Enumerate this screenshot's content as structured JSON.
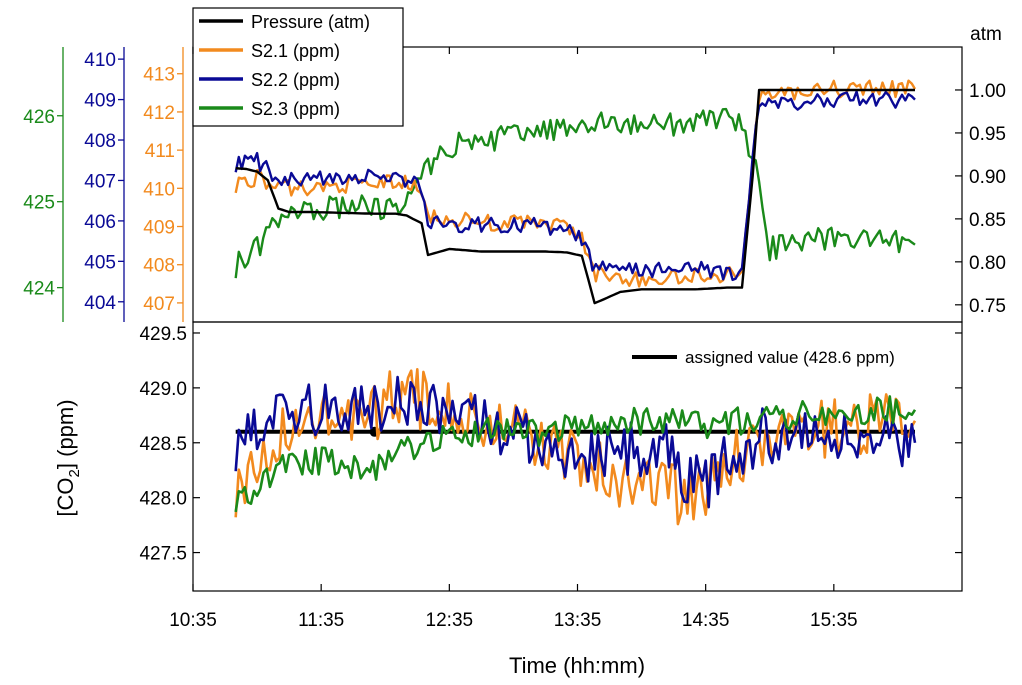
{
  "chart_data": [
    {
      "type": "line",
      "panel": "top",
      "right_axis": {
        "label": "atm",
        "range": [
          0.73,
          1.05
        ],
        "ticks": [
          "0.75",
          "0.80",
          "0.85",
          "0.90",
          "0.95",
          "1.00"
        ]
      },
      "left_axes": [
        {
          "color": "#1a8a1a",
          "range": [
            423.6,
            426.8
          ],
          "ticks": [
            "424",
            "425",
            "426"
          ]
        },
        {
          "color": "#0a0a96",
          "range": [
            403.5,
            410.3
          ],
          "ticks": [
            "404",
            "405",
            "406",
            "407",
            "408",
            "409",
            "410"
          ]
        },
        {
          "color": "#f28a1e",
          "range": [
            406.5,
            413.7
          ],
          "ticks": [
            "407",
            "408",
            "409",
            "410",
            "411",
            "412",
            "413"
          ]
        }
      ],
      "legend": {
        "position": "top-left",
        "entries": [
          "Pressure (atm)",
          "S2.1 (ppm)",
          "S2.2 (ppm)",
          "S2.3 (ppm)"
        ]
      },
      "series": [
        {
          "name": "Pressure (atm)",
          "color": "#000000",
          "axis": "atm",
          "points": [
            [
              "10:55",
              0.909
            ],
            [
              "11:00",
              0.908
            ],
            [
              "11:05",
              0.905
            ],
            [
              "11:10",
              0.895
            ],
            [
              "11:15",
              0.862
            ],
            [
              "11:20",
              0.858
            ],
            [
              "11:30",
              0.858
            ],
            [
              "11:45",
              0.857
            ],
            [
              "12:00",
              0.856
            ],
            [
              "12:10",
              0.856
            ],
            [
              "12:15",
              0.854
            ],
            [
              "12:18",
              0.85
            ],
            [
              "12:22",
              0.845
            ],
            [
              "12:25",
              0.808
            ],
            [
              "12:28",
              0.81
            ],
            [
              "12:35",
              0.815
            ],
            [
              "12:50",
              0.812
            ],
            [
              "13:20",
              0.812
            ],
            [
              "13:30",
              0.811
            ],
            [
              "13:37",
              0.807
            ],
            [
              "13:40",
              0.78
            ],
            [
              "13:43",
              0.752
            ],
            [
              "13:46",
              0.755
            ],
            [
              "13:55",
              0.765
            ],
            [
              "14:05",
              0.768
            ],
            [
              "14:30",
              0.768
            ],
            [
              "14:45",
              0.77
            ],
            [
              "14:52",
              0.77
            ],
            [
              "14:57",
              0.9
            ],
            [
              "15:00",
              1.0
            ],
            [
              "15:10",
              1.0
            ],
            [
              "15:30",
              1.0
            ],
            [
              "16:00",
              1.0
            ],
            [
              "16:13",
              1.0
            ]
          ]
        },
        {
          "name": "S2.1 (ppm)",
          "color": "#f28a1e",
          "axis": "orange",
          "points": [
            [
              "10:55",
              410.1
            ],
            [
              "11:05",
              410.3
            ],
            [
              "11:15",
              410.0
            ],
            [
              "11:30",
              410.0
            ],
            [
              "11:45",
              410.1
            ],
            [
              "12:00",
              410.1
            ],
            [
              "12:10",
              410.2
            ],
            [
              "12:20",
              410.0
            ],
            [
              "12:25",
              409.3
            ],
            [
              "12:35",
              409.2
            ],
            [
              "12:50",
              409.1
            ],
            [
              "13:10",
              409.1
            ],
            [
              "13:30",
              409.0
            ],
            [
              "13:37",
              408.7
            ],
            [
              "13:42",
              407.8
            ],
            [
              "13:50",
              407.7
            ],
            [
              "14:10",
              407.6
            ],
            [
              "14:30",
              407.7
            ],
            [
              "14:52",
              407.8
            ],
            [
              "14:57",
              410.5
            ],
            [
              "15:00",
              412.5
            ],
            [
              "15:15",
              412.5
            ],
            [
              "15:35",
              412.6
            ],
            [
              "16:13",
              412.6
            ]
          ]
        },
        {
          "name": "S2.2 (ppm)",
          "color": "#0a0a96",
          "axis": "blue",
          "points": [
            [
              "10:55",
              407.4
            ],
            [
              "11:05",
              407.5
            ],
            [
              "11:15",
              407.0
            ],
            [
              "11:30",
              407.0
            ],
            [
              "11:45",
              407.1
            ],
            [
              "12:00",
              407.1
            ],
            [
              "12:10",
              407.0
            ],
            [
              "12:20",
              407.0
            ],
            [
              "12:25",
              406.0
            ],
            [
              "12:35",
              405.9
            ],
            [
              "12:50",
              405.9
            ],
            [
              "13:10",
              405.9
            ],
            [
              "13:30",
              405.8
            ],
            [
              "13:37",
              405.5
            ],
            [
              "13:42",
              404.9
            ],
            [
              "13:50",
              404.8
            ],
            [
              "14:10",
              404.8
            ],
            [
              "14:30",
              404.8
            ],
            [
              "14:52",
              404.7
            ],
            [
              "14:57",
              407.5
            ],
            [
              "15:00",
              408.9
            ],
            [
              "15:15",
              408.9
            ],
            [
              "15:35",
              409.0
            ],
            [
              "16:13",
              409.0
            ]
          ]
        },
        {
          "name": "S2.3 (ppm)",
          "color": "#1a8a1a",
          "axis": "green",
          "points": [
            [
              "10:55",
              424.25
            ],
            [
              "11:05",
              424.45
            ],
            [
              "11:15",
              424.8
            ],
            [
              "11:30",
              424.9
            ],
            [
              "11:45",
              424.95
            ],
            [
              "12:00",
              424.95
            ],
            [
              "12:10",
              424.9
            ],
            [
              "12:20",
              425.2
            ],
            [
              "12:25",
              425.4
            ],
            [
              "12:35",
              425.65
            ],
            [
              "12:50",
              425.7
            ],
            [
              "13:10",
              425.8
            ],
            [
              "13:30",
              425.85
            ],
            [
              "13:40",
              425.9
            ],
            [
              "14:00",
              425.9
            ],
            [
              "14:20",
              425.9
            ],
            [
              "14:40",
              425.95
            ],
            [
              "14:52",
              425.95
            ],
            [
              "15:00",
              425.2
            ],
            [
              "15:05",
              424.45
            ],
            [
              "15:20",
              424.55
            ],
            [
              "15:40",
              424.6
            ],
            [
              "16:13",
              424.5
            ]
          ]
        }
      ]
    },
    {
      "type": "line",
      "panel": "bottom",
      "xlabel": "Time (hh:mm)",
      "ylabel_main": "[CO",
      "ylabel_sub": "2",
      "ylabel_tail": "] (ppm)",
      "xlim": [
        "10:35",
        "16:35"
      ],
      "ylim": [
        427.15,
        429.6
      ],
      "xticks": [
        "10:35",
        "11:35",
        "12:35",
        "13:35",
        "14:35",
        "15:35"
      ],
      "yticks": [
        "427.5",
        "428.0",
        "428.5",
        "429.0",
        "429.5"
      ],
      "legend": {
        "position": "top-right",
        "entries": [
          "assigned value (428.6 ppm)"
        ]
      },
      "series": [
        {
          "name": "assigned value (428.6 ppm)",
          "color": "#000000",
          "points": [
            [
              "10:55",
              428.6
            ],
            [
              "16:13",
              428.6
            ]
          ],
          "marker": [
            "12:00",
            428.6
          ]
        },
        {
          "name": "S2.1 (ppm)",
          "color": "#f28a1e",
          "points": [
            [
              "10:55",
              428.1
            ],
            [
              "11:05",
              428.3
            ],
            [
              "11:20",
              428.7
            ],
            [
              "11:40",
              428.8
            ],
            [
              "12:00",
              428.8
            ],
            [
              "12:10",
              428.9
            ],
            [
              "12:20",
              428.9
            ],
            [
              "12:30",
              428.8
            ],
            [
              "12:45",
              428.75
            ],
            [
              "13:00",
              428.7
            ],
            [
              "13:15",
              428.55
            ],
            [
              "13:35",
              428.35
            ],
            [
              "13:50",
              428.2
            ],
            [
              "14:10",
              428.15
            ],
            [
              "14:25",
              428.0
            ],
            [
              "14:35",
              428.05
            ],
            [
              "14:45",
              428.3
            ],
            [
              "15:00",
              428.55
            ],
            [
              "15:20",
              428.6
            ],
            [
              "15:40",
              428.65
            ],
            [
              "16:13",
              428.7
            ]
          ]
        },
        {
          "name": "S2.2 (ppm)",
          "color": "#0a0a96",
          "points": [
            [
              "10:55",
              428.5
            ],
            [
              "11:05",
              428.6
            ],
            [
              "11:20",
              428.75
            ],
            [
              "11:40",
              428.85
            ],
            [
              "12:00",
              428.85
            ],
            [
              "12:20",
              428.85
            ],
            [
              "12:35",
              428.75
            ],
            [
              "12:50",
              428.7
            ],
            [
              "13:05",
              428.6
            ],
            [
              "13:20",
              428.45
            ],
            [
              "13:40",
              428.4
            ],
            [
              "14:00",
              428.45
            ],
            [
              "14:15",
              428.45
            ],
            [
              "14:25",
              428.2
            ],
            [
              "14:35",
              428.1
            ],
            [
              "14:45",
              428.35
            ],
            [
              "15:00",
              428.55
            ],
            [
              "15:20",
              428.6
            ],
            [
              "15:40",
              428.55
            ],
            [
              "16:13",
              428.5
            ]
          ]
        },
        {
          "name": "S2.3 (ppm)",
          "color": "#1a8a1a",
          "points": [
            [
              "10:55",
              428.0
            ],
            [
              "11:05",
              428.1
            ],
            [
              "11:20",
              428.3
            ],
            [
              "11:40",
              428.35
            ],
            [
              "11:55",
              428.25
            ],
            [
              "12:05",
              428.3
            ],
            [
              "12:20",
              428.5
            ],
            [
              "12:35",
              428.6
            ],
            [
              "12:50",
              428.6
            ],
            [
              "13:05",
              428.6
            ],
            [
              "13:20",
              428.6
            ],
            [
              "13:40",
              428.65
            ],
            [
              "14:00",
              428.7
            ],
            [
              "14:15",
              428.7
            ],
            [
              "14:30",
              428.7
            ],
            [
              "14:40",
              428.65
            ],
            [
              "14:50",
              428.7
            ],
            [
              "15:05",
              428.75
            ],
            [
              "15:25",
              428.75
            ],
            [
              "15:45",
              428.8
            ],
            [
              "16:13",
              428.8
            ]
          ]
        }
      ]
    }
  ]
}
